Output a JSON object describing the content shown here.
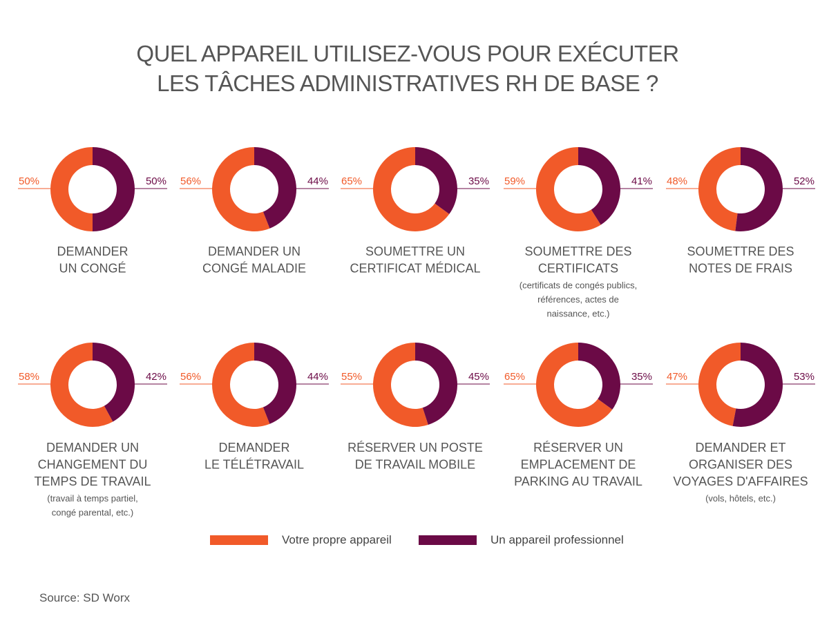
{
  "chart_data": {
    "type": "pie",
    "subtype": "donut-grid",
    "title_lines": [
      "QUEL APPAREIL UTILISEZ-VOUS POUR EXÉCUTER",
      "LES TÂCHES ADMINISTRATIVES RH DE BASE ?"
    ],
    "colors": {
      "own": "#f15a29",
      "pro": "#6b0a46"
    },
    "series_names": [
      "Votre propre appareil",
      "Un appareil professionnel"
    ],
    "charts": [
      {
        "own": 50,
        "pro": 50,
        "own_label": "50%",
        "pro_label": "50%",
        "title_lines": [
          "DEMANDER",
          "UN CONGÉ"
        ],
        "note_lines": []
      },
      {
        "own": 56,
        "pro": 44,
        "own_label": "56%",
        "pro_label": "44%",
        "title_lines": [
          "DEMANDER UN",
          "CONGÉ MALADIE"
        ],
        "note_lines": []
      },
      {
        "own": 65,
        "pro": 35,
        "own_label": "65%",
        "pro_label": "35%",
        "title_lines": [
          "SOUMETTRE UN",
          "CERTIFICAT MÉDICAL"
        ],
        "note_lines": []
      },
      {
        "own": 59,
        "pro": 41,
        "own_label": "59%",
        "pro_label": "41%",
        "title_lines": [
          "SOUMETTRE DES",
          "CERTIFICATS"
        ],
        "note_lines": [
          "(certificats de congés publics,",
          "références, actes de",
          "naissance, etc.)"
        ]
      },
      {
        "own": 48,
        "pro": 52,
        "own_label": "48%",
        "pro_label": "52%",
        "title_lines": [
          "SOUMETTRE DES",
          "NOTES DE FRAIS"
        ],
        "note_lines": []
      },
      {
        "own": 58,
        "pro": 42,
        "own_label": "58%",
        "pro_label": "42%",
        "title_lines": [
          "DEMANDER UN",
          "CHANGEMENT DU",
          "TEMPS DE TRAVAIL"
        ],
        "note_lines": [
          "(travail à temps partiel,",
          "congé parental, etc.)"
        ]
      },
      {
        "own": 56,
        "pro": 44,
        "own_label": "56%",
        "pro_label": "44%",
        "title_lines": [
          "DEMANDER",
          "LE TÉLÉTRAVAIL"
        ],
        "note_lines": []
      },
      {
        "own": 55,
        "pro": 45,
        "own_label": "55%",
        "pro_label": "45%",
        "title_lines": [
          "RÉSERVER UN POSTE",
          "DE TRAVAIL MOBILE"
        ],
        "note_lines": []
      },
      {
        "own": 65,
        "pro": 35,
        "own_label": "65%",
        "pro_label": "35%",
        "title_lines": [
          "RÉSERVER UN",
          "EMPLACEMENT DE",
          "PARKING AU TRAVAIL"
        ],
        "note_lines": []
      },
      {
        "own": 47,
        "pro": 53,
        "own_label": "47%",
        "pro_label": "53%",
        "title_lines": [
          "DEMANDER ET",
          "ORGANISER DES",
          "VOYAGES D'AFFAIRES"
        ],
        "note_lines": [
          "(vols, hôtels, etc.)"
        ]
      }
    ]
  },
  "legend": {
    "own_label": "Votre propre appareil",
    "pro_label": "Un appareil professionnel"
  },
  "source": "Source: SD Worx"
}
